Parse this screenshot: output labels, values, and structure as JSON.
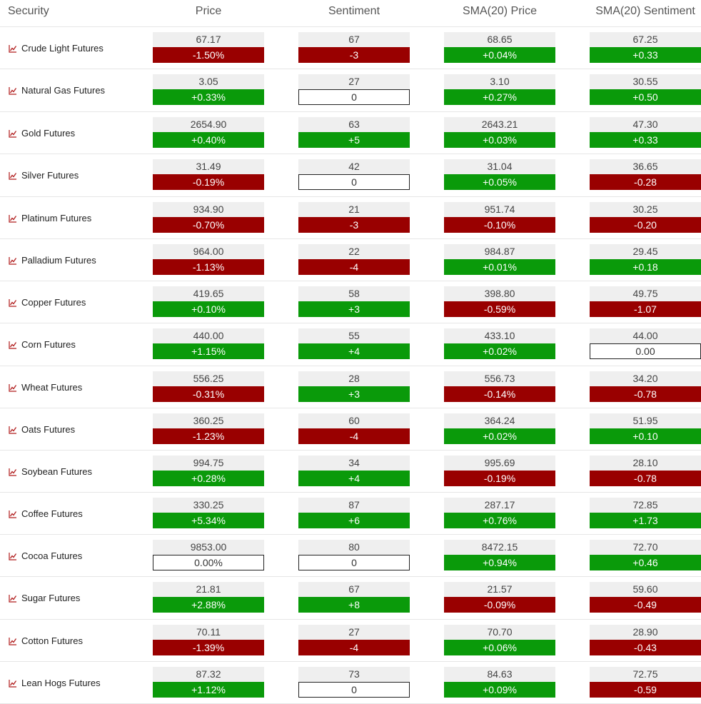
{
  "headers": {
    "security": "Security",
    "price": "Price",
    "sentiment": "Sentiment",
    "sma_price": "SMA(20) Price",
    "sma_sentiment": "SMA(20) Sentiment"
  },
  "colors": {
    "positive": "#0a9a0a",
    "negative": "#990000",
    "flat": "#ffffff",
    "icon": "#b01c1c"
  },
  "row_icon": "line-chart-icon",
  "rows": [
    {
      "name": "Crude Light Futures",
      "price": "67.17",
      "price_chg": "-1.50%",
      "sentiment": "67",
      "sentiment_chg": "-3",
      "sma_price": "68.65",
      "sma_price_chg": "+0.04%",
      "sma_sentiment": "67.25",
      "sma_sentiment_chg": "+0.33"
    },
    {
      "name": "Natural Gas Futures",
      "price": "3.05",
      "price_chg": "+0.33%",
      "sentiment": "27",
      "sentiment_chg": "0",
      "sma_price": "3.10",
      "sma_price_chg": "+0.27%",
      "sma_sentiment": "30.55",
      "sma_sentiment_chg": "+0.50"
    },
    {
      "name": "Gold Futures",
      "price": "2654.90",
      "price_chg": "+0.40%",
      "sentiment": "63",
      "sentiment_chg": "+5",
      "sma_price": "2643.21",
      "sma_price_chg": "+0.03%",
      "sma_sentiment": "47.30",
      "sma_sentiment_chg": "+0.33"
    },
    {
      "name": "Silver Futures",
      "price": "31.49",
      "price_chg": "-0.19%",
      "sentiment": "42",
      "sentiment_chg": "0",
      "sma_price": "31.04",
      "sma_price_chg": "+0.05%",
      "sma_sentiment": "36.65",
      "sma_sentiment_chg": "-0.28"
    },
    {
      "name": "Platinum Futures",
      "price": "934.90",
      "price_chg": "-0.70%",
      "sentiment": "21",
      "sentiment_chg": "-3",
      "sma_price": "951.74",
      "sma_price_chg": "-0.10%",
      "sma_sentiment": "30.25",
      "sma_sentiment_chg": "-0.20"
    },
    {
      "name": "Palladium Futures",
      "price": "964.00",
      "price_chg": "-1.13%",
      "sentiment": "22",
      "sentiment_chg": "-4",
      "sma_price": "984.87",
      "sma_price_chg": "+0.01%",
      "sma_sentiment": "29.45",
      "sma_sentiment_chg": "+0.18"
    },
    {
      "name": "Copper Futures",
      "price": "419.65",
      "price_chg": "+0.10%",
      "sentiment": "58",
      "sentiment_chg": "+3",
      "sma_price": "398.80",
      "sma_price_chg": "-0.59%",
      "sma_sentiment": "49.75",
      "sma_sentiment_chg": "-1.07"
    },
    {
      "name": "Corn Futures",
      "price": "440.00",
      "price_chg": "+1.15%",
      "sentiment": "55",
      "sentiment_chg": "+4",
      "sma_price": "433.10",
      "sma_price_chg": "+0.02%",
      "sma_sentiment": "44.00",
      "sma_sentiment_chg": "0.00"
    },
    {
      "name": "Wheat Futures",
      "price": "556.25",
      "price_chg": "-0.31%",
      "sentiment": "28",
      "sentiment_chg": "+3",
      "sma_price": "556.73",
      "sma_price_chg": "-0.14%",
      "sma_sentiment": "34.20",
      "sma_sentiment_chg": "-0.78"
    },
    {
      "name": "Oats Futures",
      "price": "360.25",
      "price_chg": "-1.23%",
      "sentiment": "60",
      "sentiment_chg": "-4",
      "sma_price": "364.24",
      "sma_price_chg": "+0.02%",
      "sma_sentiment": "51.95",
      "sma_sentiment_chg": "+0.10"
    },
    {
      "name": "Soybean Futures",
      "price": "994.75",
      "price_chg": "+0.28%",
      "sentiment": "34",
      "sentiment_chg": "+4",
      "sma_price": "995.69",
      "sma_price_chg": "-0.19%",
      "sma_sentiment": "28.10",
      "sma_sentiment_chg": "-0.78"
    },
    {
      "name": "Coffee Futures",
      "price": "330.25",
      "price_chg": "+5.34%",
      "sentiment": "87",
      "sentiment_chg": "+6",
      "sma_price": "287.17",
      "sma_price_chg": "+0.76%",
      "sma_sentiment": "72.85",
      "sma_sentiment_chg": "+1.73"
    },
    {
      "name": "Cocoa Futures",
      "price": "9853.00",
      "price_chg": "0.00%",
      "sentiment": "80",
      "sentiment_chg": "0",
      "sma_price": "8472.15",
      "sma_price_chg": "+0.94%",
      "sma_sentiment": "72.70",
      "sma_sentiment_chg": "+0.46"
    },
    {
      "name": "Sugar Futures",
      "price": "21.81",
      "price_chg": "+2.88%",
      "sentiment": "67",
      "sentiment_chg": "+8",
      "sma_price": "21.57",
      "sma_price_chg": "-0.09%",
      "sma_sentiment": "59.60",
      "sma_sentiment_chg": "-0.49"
    },
    {
      "name": "Cotton Futures",
      "price": "70.11",
      "price_chg": "-1.39%",
      "sentiment": "27",
      "sentiment_chg": "-4",
      "sma_price": "70.70",
      "sma_price_chg": "+0.06%",
      "sma_sentiment": "28.90",
      "sma_sentiment_chg": "-0.43"
    },
    {
      "name": "Lean Hogs Futures",
      "price": "87.32",
      "price_chg": "+1.12%",
      "sentiment": "73",
      "sentiment_chg": "0",
      "sma_price": "84.63",
      "sma_price_chg": "+0.09%",
      "sma_sentiment": "72.75",
      "sma_sentiment_chg": "-0.59"
    }
  ]
}
